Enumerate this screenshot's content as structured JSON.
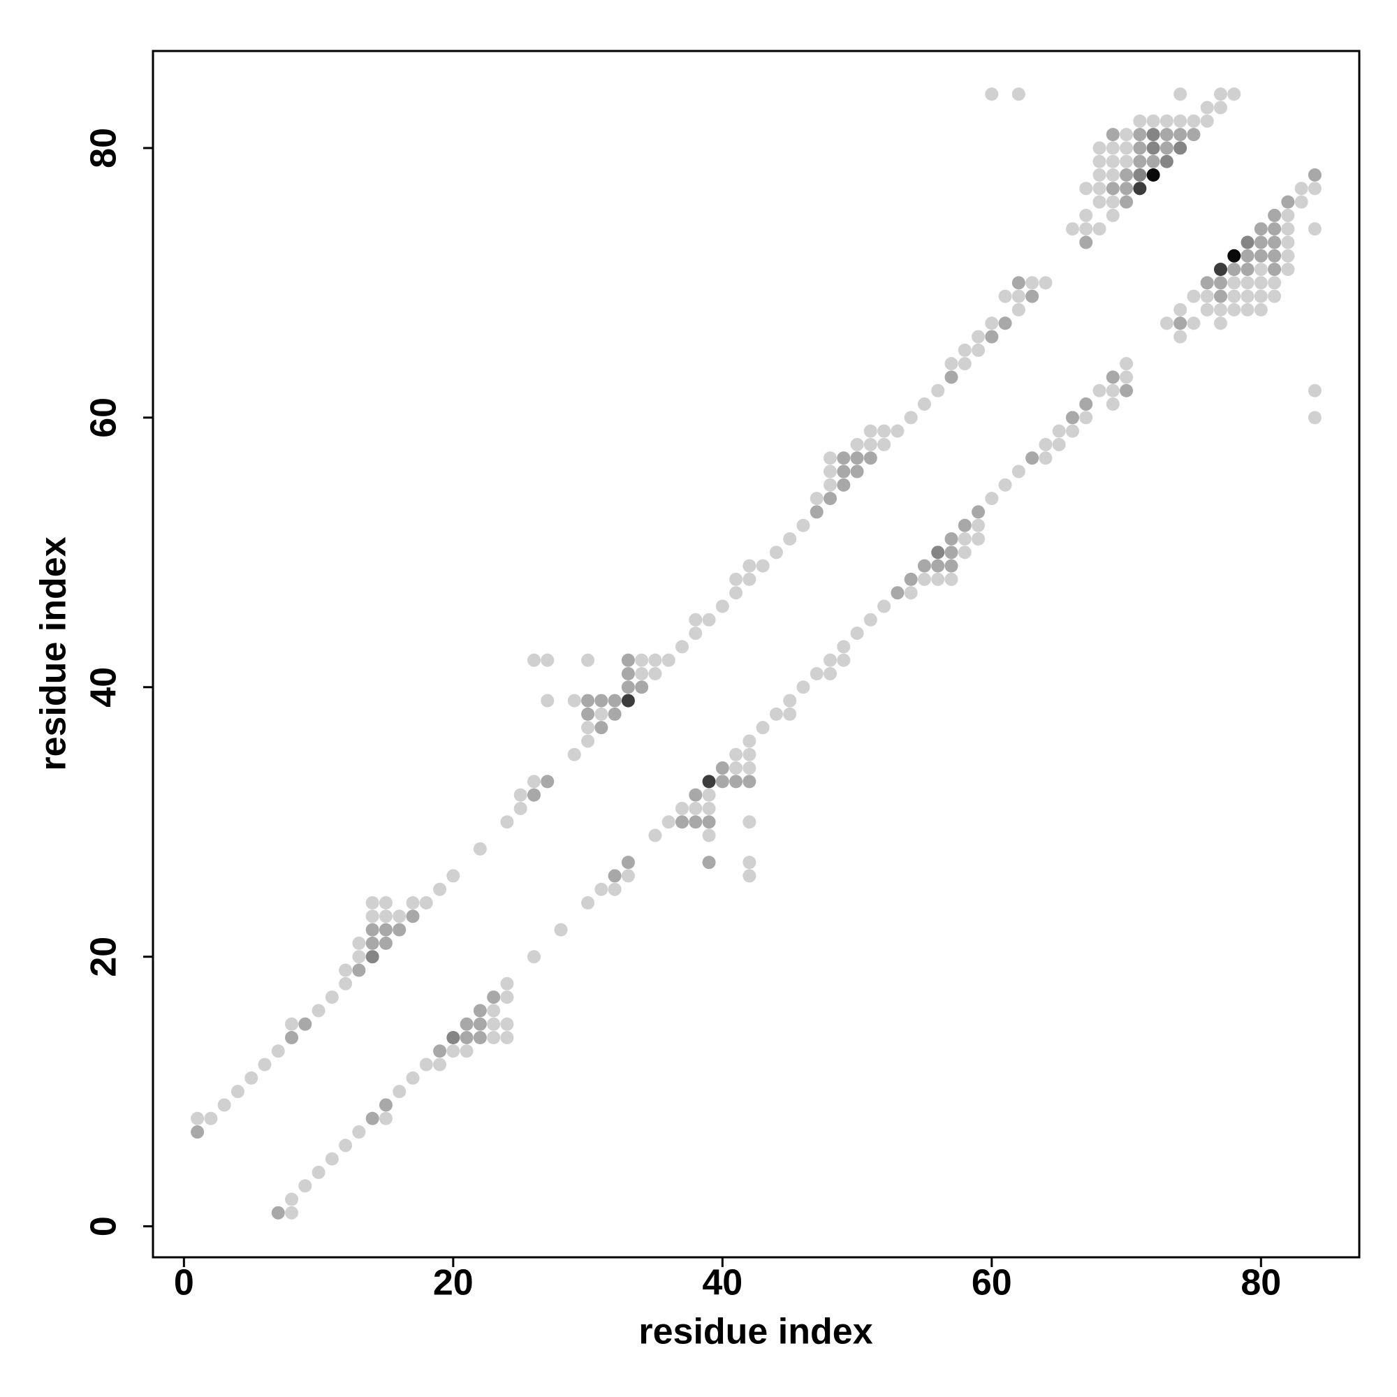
{
  "chart_data": {
    "type": "scatter",
    "xlabel": "residue index",
    "ylabel": "residue index",
    "xlim": [
      -2.3,
      87.3
    ],
    "ylim": [
      -2.3,
      87.2
    ],
    "xticks": [
      0,
      20,
      40,
      60,
      80
    ],
    "yticks": [
      0,
      20,
      40,
      60,
      80
    ],
    "series": [
      {
        "color": "#d0d0d0",
        "x": [
          1,
          2,
          3,
          4,
          5,
          6,
          7,
          8,
          10,
          11,
          12,
          12,
          13,
          13,
          14,
          14,
          15,
          15,
          16,
          17,
          18,
          19,
          20,
          22,
          24,
          25,
          25,
          26,
          26,
          27,
          27,
          29,
          29,
          30,
          30,
          30,
          31,
          34,
          34,
          35,
          35,
          36,
          37,
          38,
          38,
          39,
          40,
          41,
          41,
          42,
          42,
          43,
          44,
          45,
          46,
          47,
          48,
          48,
          48,
          50,
          51,
          51,
          52,
          52,
          53,
          54,
          55,
          56,
          57,
          58,
          58,
          59,
          59,
          60,
          61,
          62,
          62,
          63,
          64,
          60,
          62,
          66,
          67,
          67,
          67,
          68,
          68,
          68,
          68,
          68,
          68,
          69,
          69,
          69,
          69,
          69,
          70,
          70,
          70,
          71,
          72,
          73,
          74,
          74,
          75,
          76,
          76,
          77,
          77,
          78,
          8,
          8,
          9,
          10,
          11,
          12,
          13,
          15,
          16,
          17,
          18,
          19,
          20,
          21,
          23,
          23,
          23,
          24,
          24,
          24,
          24,
          26,
          28,
          30,
          31,
          32,
          33,
          35,
          36,
          37,
          38,
          39,
          39,
          39,
          41,
          41,
          42,
          42,
          42,
          42,
          42,
          42,
          43,
          44,
          45,
          45,
          46,
          47,
          48,
          48,
          49,
          49,
          50,
          51,
          52,
          54,
          55,
          56,
          57,
          58,
          58,
          59,
          59,
          60,
          61,
          62,
          64,
          64,
          65,
          65,
          66,
          67,
          68,
          69,
          69,
          70,
          70,
          74,
          73,
          74,
          75,
          75,
          76,
          76,
          77,
          77,
          78,
          78,
          78,
          79,
          79,
          79,
          80,
          80,
          80,
          80,
          81,
          81,
          82,
          82,
          82,
          82,
          82,
          83,
          83,
          84,
          84,
          84,
          84
        ],
        "y": [
          8,
          8,
          9,
          10,
          11,
          12,
          13,
          15,
          16,
          17,
          18,
          19,
          20,
          21,
          23,
          24,
          23,
          24,
          23,
          24,
          24,
          25,
          26,
          28,
          30,
          31,
          32,
          33,
          42,
          42,
          39,
          35,
          39,
          36,
          37,
          42,
          38,
          41,
          42,
          41,
          42,
          42,
          43,
          44,
          45,
          45,
          46,
          47,
          48,
          48,
          49,
          49,
          50,
          51,
          52,
          54,
          55,
          56,
          57,
          58,
          58,
          59,
          58,
          59,
          59,
          60,
          61,
          62,
          64,
          64,
          65,
          65,
          66,
          67,
          69,
          68,
          69,
          70,
          70,
          84,
          84,
          74,
          74,
          75,
          77,
          74,
          76,
          77,
          78,
          79,
          80,
          75,
          76,
          78,
          79,
          80,
          79,
          80,
          81,
          82,
          82,
          82,
          82,
          84,
          82,
          82,
          83,
          83,
          84,
          84,
          1,
          2,
          3,
          4,
          5,
          6,
          7,
          8,
          10,
          11,
          12,
          12,
          13,
          13,
          14,
          15,
          16,
          14,
          15,
          17,
          18,
          20,
          22,
          24,
          25,
          25,
          26,
          29,
          30,
          31,
          31,
          29,
          31,
          32,
          34,
          35,
          26,
          27,
          30,
          34,
          35,
          36,
          37,
          38,
          38,
          39,
          40,
          41,
          41,
          42,
          42,
          43,
          44,
          45,
          46,
          47,
          48,
          48,
          48,
          50,
          51,
          51,
          52,
          54,
          55,
          56,
          57,
          58,
          58,
          59,
          59,
          60,
          62,
          61,
          62,
          63,
          64,
          66,
          67,
          68,
          67,
          69,
          68,
          69,
          67,
          68,
          68,
          69,
          70,
          68,
          69,
          70,
          68,
          69,
          70,
          71,
          69,
          70,
          71,
          72,
          73,
          74,
          75,
          76,
          77,
          74,
          77,
          60,
          62
        ]
      },
      {
        "color": "#a8a8a8",
        "x": [
          1,
          8,
          9,
          13,
          14,
          14,
          15,
          15,
          16,
          17,
          26,
          27,
          30,
          30,
          31,
          31,
          32,
          32,
          33,
          33,
          33,
          34,
          47,
          48,
          49,
          49,
          49,
          50,
          50,
          51,
          57,
          60,
          61,
          62,
          63,
          67,
          69,
          69,
          70,
          70,
          70,
          71,
          71,
          71,
          72,
          73,
          73,
          74,
          75,
          7,
          14,
          15,
          19,
          21,
          21,
          22,
          22,
          22,
          23,
          32,
          33,
          37,
          38,
          38,
          39,
          39,
          40,
          40,
          41,
          42,
          53,
          54,
          55,
          56,
          57,
          57,
          57,
          58,
          59,
          63,
          66,
          67,
          69,
          70,
          74,
          76,
          77,
          77,
          78,
          79,
          79,
          80,
          80,
          80,
          81,
          81,
          81,
          81,
          81,
          82,
          84
        ],
        "y": [
          7,
          14,
          15,
          19,
          21,
          22,
          21,
          22,
          22,
          23,
          32,
          33,
          38,
          39,
          37,
          39,
          38,
          39,
          40,
          41,
          42,
          40,
          53,
          54,
          55,
          56,
          57,
          56,
          57,
          57,
          63,
          66,
          67,
          70,
          69,
          73,
          77,
          81,
          76,
          77,
          78,
          79,
          80,
          81,
          79,
          80,
          81,
          81,
          81,
          1,
          8,
          9,
          13,
          14,
          15,
          14,
          15,
          16,
          17,
          26,
          27,
          30,
          30,
          32,
          27,
          30,
          33,
          34,
          33,
          33,
          47,
          48,
          49,
          49,
          49,
          50,
          51,
          52,
          53,
          57,
          60,
          61,
          63,
          62,
          67,
          70,
          69,
          70,
          71,
          71,
          72,
          72,
          73,
          74,
          71,
          72,
          73,
          74,
          75,
          76,
          78
        ]
      },
      {
        "color": "#858585",
        "x": [
          14,
          71,
          72,
          72,
          73,
          74,
          20,
          56,
          79
        ],
        "y": [
          20,
          78,
          80,
          81,
          79,
          80,
          14,
          50,
          73
        ]
      },
      {
        "color": "#3c3c3c",
        "x": [
          33,
          71,
          39,
          77
        ],
        "y": [
          39,
          77,
          33,
          71
        ]
      },
      {
        "color": "#0a0a0a",
        "x": [
          72,
          78
        ],
        "y": [
          78,
          72
        ]
      }
    ]
  }
}
